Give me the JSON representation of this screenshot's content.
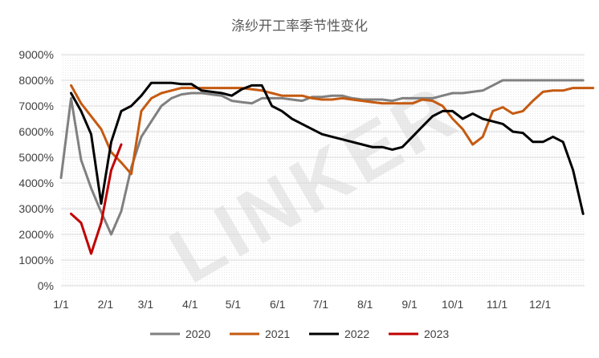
{
  "chart_data": {
    "type": "line",
    "title": "涤纱开工率季节性变化",
    "watermark": "LINKER",
    "xlabel": "",
    "ylabel": "",
    "ylim": [
      0,
      9000
    ],
    "y_ticks": [
      0,
      1000,
      2000,
      3000,
      4000,
      5000,
      6000,
      7000,
      8000,
      9000
    ],
    "y_tick_labels": [
      "0%",
      "1000%",
      "2000%",
      "3000%",
      "4000%",
      "5000%",
      "6000%",
      "7000%",
      "8000%",
      "9000%"
    ],
    "x_tick_labels": [
      "1/1",
      "2/1",
      "3/1",
      "4/1",
      "5/1",
      "6/1",
      "7/1",
      "8/1",
      "9/1",
      "10/1",
      "11/1",
      "12/1"
    ],
    "x_range_days": [
      0,
      365
    ],
    "legend_position": "bottom",
    "series": [
      {
        "name": "2020",
        "color": "#808080",
        "points": [
          [
            0,
            4200
          ],
          [
            7,
            7300
          ],
          [
            14,
            4900
          ],
          [
            21,
            3800
          ],
          [
            27,
            3000
          ],
          [
            35,
            2000
          ],
          [
            42,
            2900
          ],
          [
            49,
            4600
          ],
          [
            56,
            5800
          ],
          [
            63,
            6400
          ],
          [
            70,
            7000
          ],
          [
            77,
            7300
          ],
          [
            84,
            7450
          ],
          [
            91,
            7500
          ],
          [
            98,
            7500
          ],
          [
            105,
            7450
          ],
          [
            112,
            7400
          ],
          [
            119,
            7200
          ],
          [
            126,
            7150
          ],
          [
            133,
            7100
          ],
          [
            140,
            7300
          ],
          [
            147,
            7300
          ],
          [
            154,
            7300
          ],
          [
            161,
            7250
          ],
          [
            168,
            7200
          ],
          [
            175,
            7350
          ],
          [
            182,
            7350
          ],
          [
            189,
            7400
          ],
          [
            196,
            7400
          ],
          [
            203,
            7300
          ],
          [
            210,
            7250
          ],
          [
            217,
            7250
          ],
          [
            224,
            7250
          ],
          [
            231,
            7200
          ],
          [
            238,
            7300
          ],
          [
            245,
            7300
          ],
          [
            252,
            7300
          ],
          [
            259,
            7300
          ],
          [
            266,
            7400
          ],
          [
            273,
            7500
          ],
          [
            280,
            7500
          ],
          [
            287,
            7550
          ],
          [
            294,
            7600
          ],
          [
            301,
            7800
          ],
          [
            308,
            8000
          ],
          [
            315,
            8000
          ],
          [
            322,
            8000
          ],
          [
            329,
            8000
          ],
          [
            336,
            8000
          ],
          [
            343,
            8000
          ],
          [
            350,
            8000
          ],
          [
            357,
            8000
          ],
          [
            364,
            8000
          ]
        ]
      },
      {
        "name": "2021",
        "color": "#c55a11",
        "points": [
          [
            7,
            7800
          ],
          [
            14,
            7100
          ],
          [
            21,
            6600
          ],
          [
            28,
            6100
          ],
          [
            35,
            5200
          ],
          [
            42,
            4800
          ],
          [
            49,
            4350
          ],
          [
            56,
            6800
          ],
          [
            63,
            7300
          ],
          [
            70,
            7500
          ],
          [
            77,
            7600
          ],
          [
            84,
            7700
          ],
          [
            91,
            7700
          ],
          [
            98,
            7700
          ],
          [
            105,
            7700
          ],
          [
            112,
            7700
          ],
          [
            119,
            7700
          ],
          [
            126,
            7700
          ],
          [
            133,
            7650
          ],
          [
            140,
            7600
          ],
          [
            147,
            7500
          ],
          [
            154,
            7400
          ],
          [
            161,
            7400
          ],
          [
            168,
            7400
          ],
          [
            175,
            7300
          ],
          [
            182,
            7250
          ],
          [
            189,
            7250
          ],
          [
            196,
            7300
          ],
          [
            203,
            7250
          ],
          [
            210,
            7200
          ],
          [
            217,
            7150
          ],
          [
            224,
            7100
          ],
          [
            231,
            7100
          ],
          [
            238,
            7100
          ],
          [
            245,
            7100
          ],
          [
            252,
            7250
          ],
          [
            259,
            7200
          ],
          [
            266,
            7000
          ],
          [
            273,
            6500
          ],
          [
            280,
            6100
          ],
          [
            287,
            5500
          ],
          [
            294,
            5800
          ],
          [
            301,
            6800
          ],
          [
            308,
            6950
          ],
          [
            315,
            6700
          ],
          [
            322,
            6800
          ],
          [
            329,
            7200
          ],
          [
            336,
            7550
          ],
          [
            343,
            7600
          ],
          [
            350,
            7600
          ],
          [
            357,
            7700
          ],
          [
            364,
            7700
          ],
          [
            371,
            7700
          ]
        ]
      },
      {
        "name": "2022",
        "color": "#000000",
        "points": [
          [
            7,
            7500
          ],
          [
            14,
            6800
          ],
          [
            21,
            5900
          ],
          [
            28,
            3200
          ],
          [
            35,
            5600
          ],
          [
            42,
            6800
          ],
          [
            49,
            7000
          ],
          [
            56,
            7400
          ],
          [
            63,
            7900
          ],
          [
            70,
            7900
          ],
          [
            77,
            7900
          ],
          [
            84,
            7850
          ],
          [
            91,
            7850
          ],
          [
            98,
            7600
          ],
          [
            105,
            7550
          ],
          [
            112,
            7500
          ],
          [
            119,
            7400
          ],
          [
            126,
            7650
          ],
          [
            133,
            7800
          ],
          [
            140,
            7800
          ],
          [
            147,
            7000
          ],
          [
            154,
            6800
          ],
          [
            161,
            6500
          ],
          [
            168,
            6300
          ],
          [
            175,
            6100
          ],
          [
            182,
            5900
          ],
          [
            189,
            5800
          ],
          [
            196,
            5700
          ],
          [
            203,
            5600
          ],
          [
            210,
            5500
          ],
          [
            217,
            5400
          ],
          [
            224,
            5400
          ],
          [
            231,
            5300
          ],
          [
            238,
            5400
          ],
          [
            245,
            5800
          ],
          [
            252,
            6200
          ],
          [
            259,
            6600
          ],
          [
            266,
            6800
          ],
          [
            273,
            6800
          ],
          [
            280,
            6500
          ],
          [
            287,
            6700
          ],
          [
            294,
            6500
          ],
          [
            301,
            6400
          ],
          [
            308,
            6300
          ],
          [
            315,
            6000
          ],
          [
            322,
            5950
          ],
          [
            329,
            5600
          ],
          [
            336,
            5600
          ],
          [
            343,
            5800
          ],
          [
            350,
            5600
          ],
          [
            357,
            4500
          ],
          [
            364,
            2800
          ]
        ]
      },
      {
        "name": "2023",
        "color": "#c00000",
        "points": [
          [
            7,
            2800
          ],
          [
            14,
            2450
          ],
          [
            21,
            1250
          ],
          [
            28,
            2450
          ],
          [
            35,
            4500
          ],
          [
            42,
            5500
          ]
        ]
      }
    ]
  }
}
